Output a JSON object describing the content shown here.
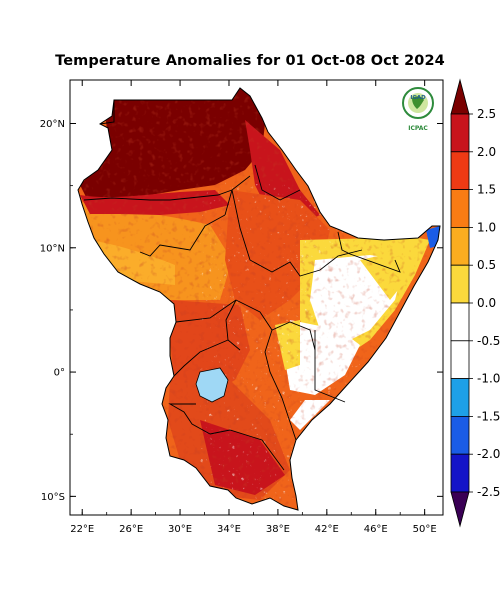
{
  "title": "Temperature Anomalies for 01 Oct-08 Oct 2024",
  "logo": {
    "top_text": "IGAD",
    "bottom_text": "ICPAC",
    "ring_color": "#2e8b3c"
  },
  "map_frame": {
    "lon_min": 21,
    "lon_max": 51.5,
    "lat_min": -11.5,
    "lat_max": 23.5
  },
  "lat_ticks": [
    {
      "value": 20,
      "label": "20°N"
    },
    {
      "value": 10,
      "label": "10°N"
    },
    {
      "value": 0,
      "label": "0°"
    },
    {
      "value": -10,
      "label": "10°S"
    }
  ],
  "lon_ticks": [
    {
      "value": 22,
      "label": "22°E"
    },
    {
      "value": 26,
      "label": "26°E"
    },
    {
      "value": 30,
      "label": "30°E"
    },
    {
      "value": 34,
      "label": "34°E"
    },
    {
      "value": 38,
      "label": "38°E"
    },
    {
      "value": 42,
      "label": "42°E"
    },
    {
      "value": 46,
      "label": "46°E"
    },
    {
      "value": 50,
      "label": "50°E"
    }
  ],
  "colorbar": {
    "labels": [
      "2.5",
      "2.0",
      "1.5",
      "1.0",
      "0.5",
      "0.0",
      "-0.5",
      "-1.0",
      "-1.5",
      "-2.0",
      "-2.5"
    ],
    "colors": [
      "#7a0000",
      "#c8141c",
      "#ee3a14",
      "#f97c14",
      "#fbad20",
      "#fbd93c",
      "#ffffff",
      "#ffffff",
      "#1ea0e8",
      "#1a5ce6",
      "#1414c8",
      "#3c008c",
      "#3a0055"
    ]
  }
}
